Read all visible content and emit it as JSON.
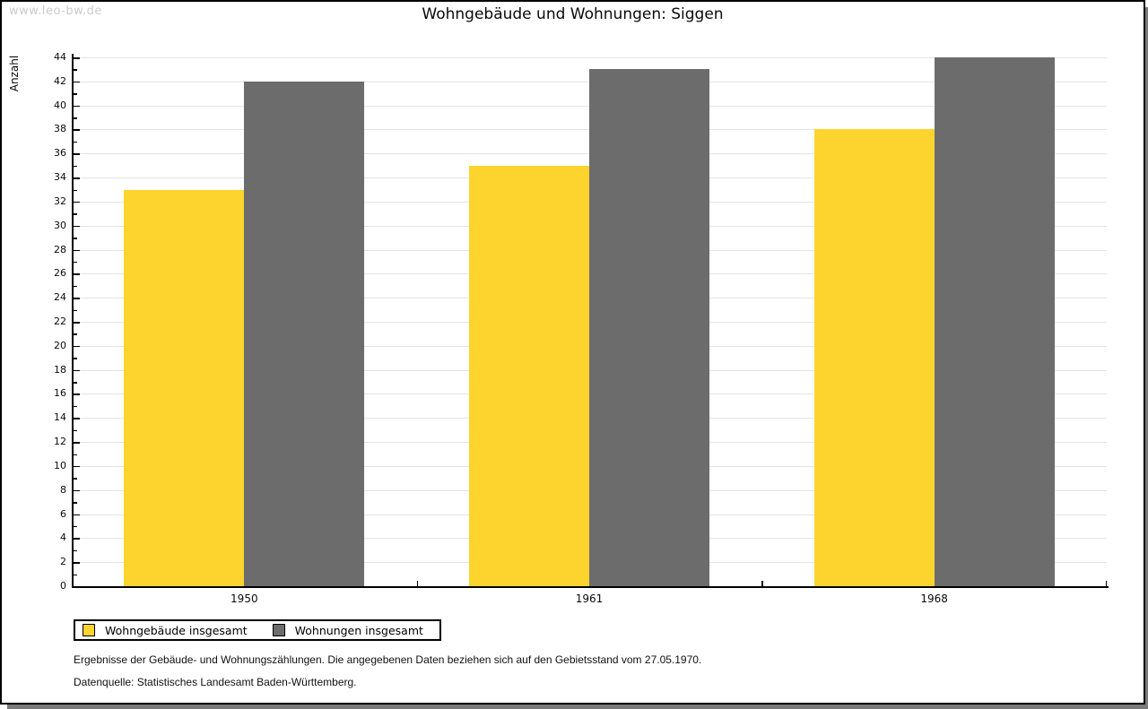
{
  "watermark": "www.leo-bw.de",
  "chart_data": {
    "type": "bar",
    "title": "Wohngebäude und Wohnungen: Siggen",
    "categories": [
      "1950",
      "1961",
      "1968"
    ],
    "series": [
      {
        "name": "Wohngebäude insgesamt",
        "color": "#fcd42d",
        "values": [
          33,
          35,
          38
        ]
      },
      {
        "name": "Wohnungen insgesamt",
        "color": "#6c6c6c",
        "values": [
          42,
          43,
          44
        ]
      }
    ],
    "xlabel": "",
    "ylabel": "Anzahl",
    "ylim": [
      0,
      44
    ],
    "ytick_step": 2,
    "grid": true,
    "gridline_color": "#e4e4e4",
    "legend_position": "bottom-left"
  },
  "footnotes": [
    "Ergebnisse der Gebäude- und Wohnungszählungen. Die angegebenen Daten beziehen sich auf den Gebietsstand vom 27.05.1970.",
    "Datenquelle: Statistisches Landesamt Baden-Württemberg."
  ]
}
